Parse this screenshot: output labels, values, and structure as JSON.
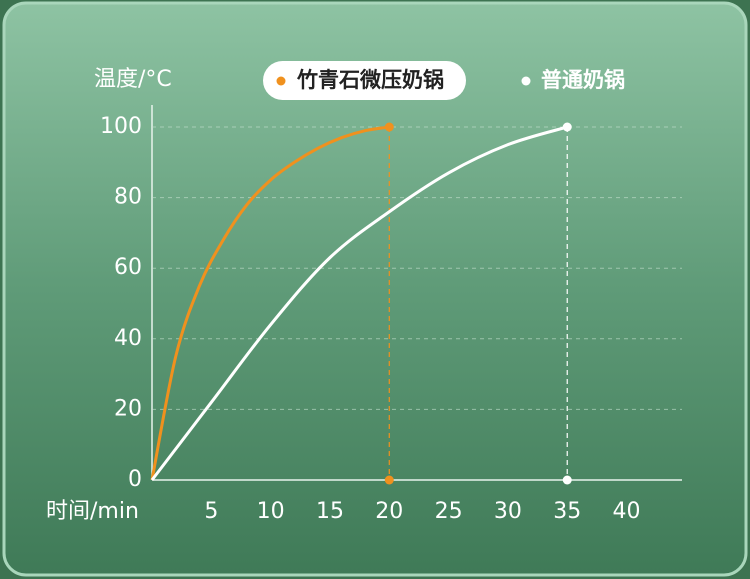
{
  "chart_data": {
    "type": "line",
    "y_label": "温度/°C",
    "x_label": "时间/min",
    "xlim": [
      0,
      44
    ],
    "ylim": [
      0,
      100
    ],
    "xticks": [
      5,
      10,
      15,
      20,
      25,
      30,
      35,
      40
    ],
    "yticks": [
      0,
      20,
      40,
      60,
      80,
      100
    ],
    "grid": true,
    "series": [
      {
        "name": "竹青石微压奶锅",
        "color": "#f0911e",
        "x": [
          0,
          2,
          4,
          6,
          8,
          10,
          12,
          14,
          16,
          18,
          20
        ],
        "values": [
          0,
          35,
          55,
          68,
          78,
          85,
          90,
          94,
          97,
          99,
          100
        ]
      },
      {
        "name": "普通奶锅",
        "color": "#ffffff",
        "x": [
          0,
          5,
          10,
          15,
          20,
          25,
          30,
          35
        ],
        "values": [
          0,
          22,
          44,
          63,
          76,
          87,
          95,
          100
        ]
      }
    ]
  }
}
